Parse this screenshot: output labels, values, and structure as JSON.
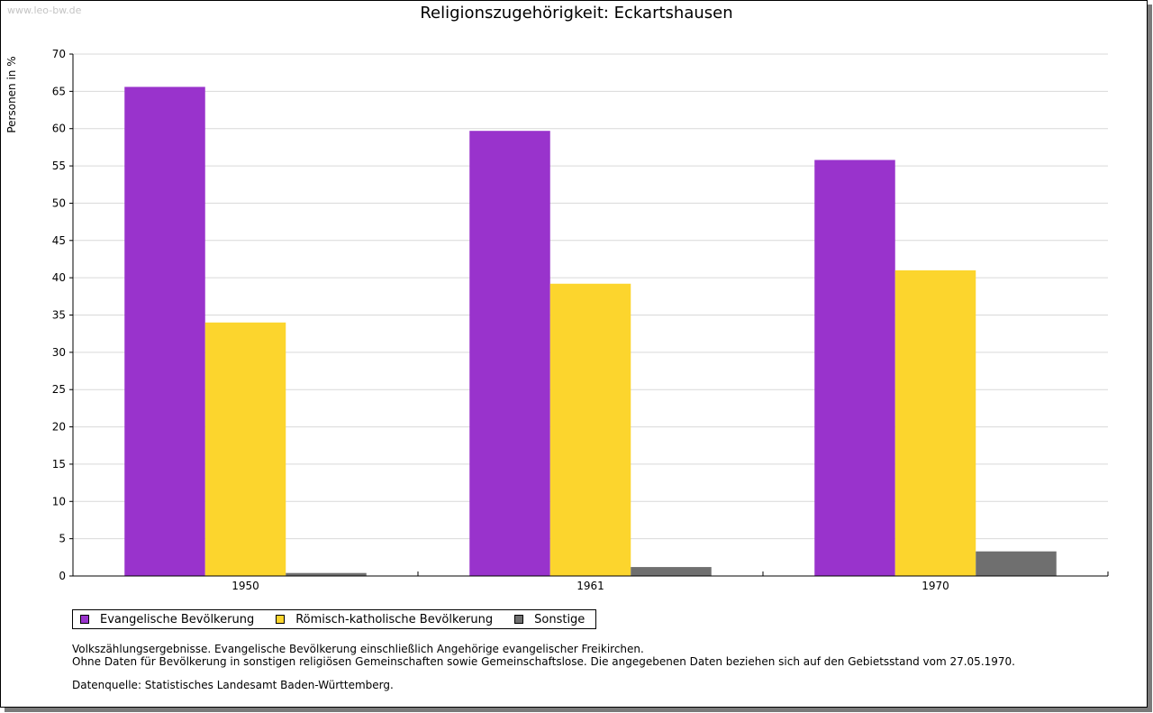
{
  "watermark": "www.leo-bw.de",
  "chart_data": {
    "type": "bar",
    "title": "Religionszugehörigkeit: Eckartshausen",
    "xlabel": "",
    "ylabel": "Personen in %",
    "categories": [
      "1950",
      "1961",
      "1970"
    ],
    "series": [
      {
        "name": "Evangelische Bevölkerung",
        "color": "#9933CC",
        "values": [
          65.6,
          59.7,
          55.8
        ]
      },
      {
        "name": "Römisch-katholische Bevölkerung",
        "color": "#FCD52D",
        "values": [
          34.0,
          39.2,
          41.0
        ]
      },
      {
        "name": "Sonstige",
        "color": "#6F6F6F",
        "values": [
          0.4,
          1.2,
          3.3
        ]
      }
    ],
    "ylim": [
      0,
      70
    ],
    "yticks": [
      0,
      5,
      10,
      15,
      20,
      25,
      30,
      35,
      40,
      45,
      50,
      55,
      60,
      65,
      70
    ],
    "grid": true,
    "legend": "bottom-left"
  },
  "notes": {
    "line1": "Volkszählungsergebnisse. Evangelische Bevölkerung einschließlich Angehörige evangelischer Freikirchen.",
    "line2": "Ohne Daten für Bevölkerung in sonstigen religiösen Gemeinschaften sowie Gemeinschaftslose. Die angegebenen Daten beziehen sich auf den Gebietsstand vom 27.05.1970.",
    "source": "Datenquelle: Statistisches Landesamt Baden-Württemberg."
  }
}
